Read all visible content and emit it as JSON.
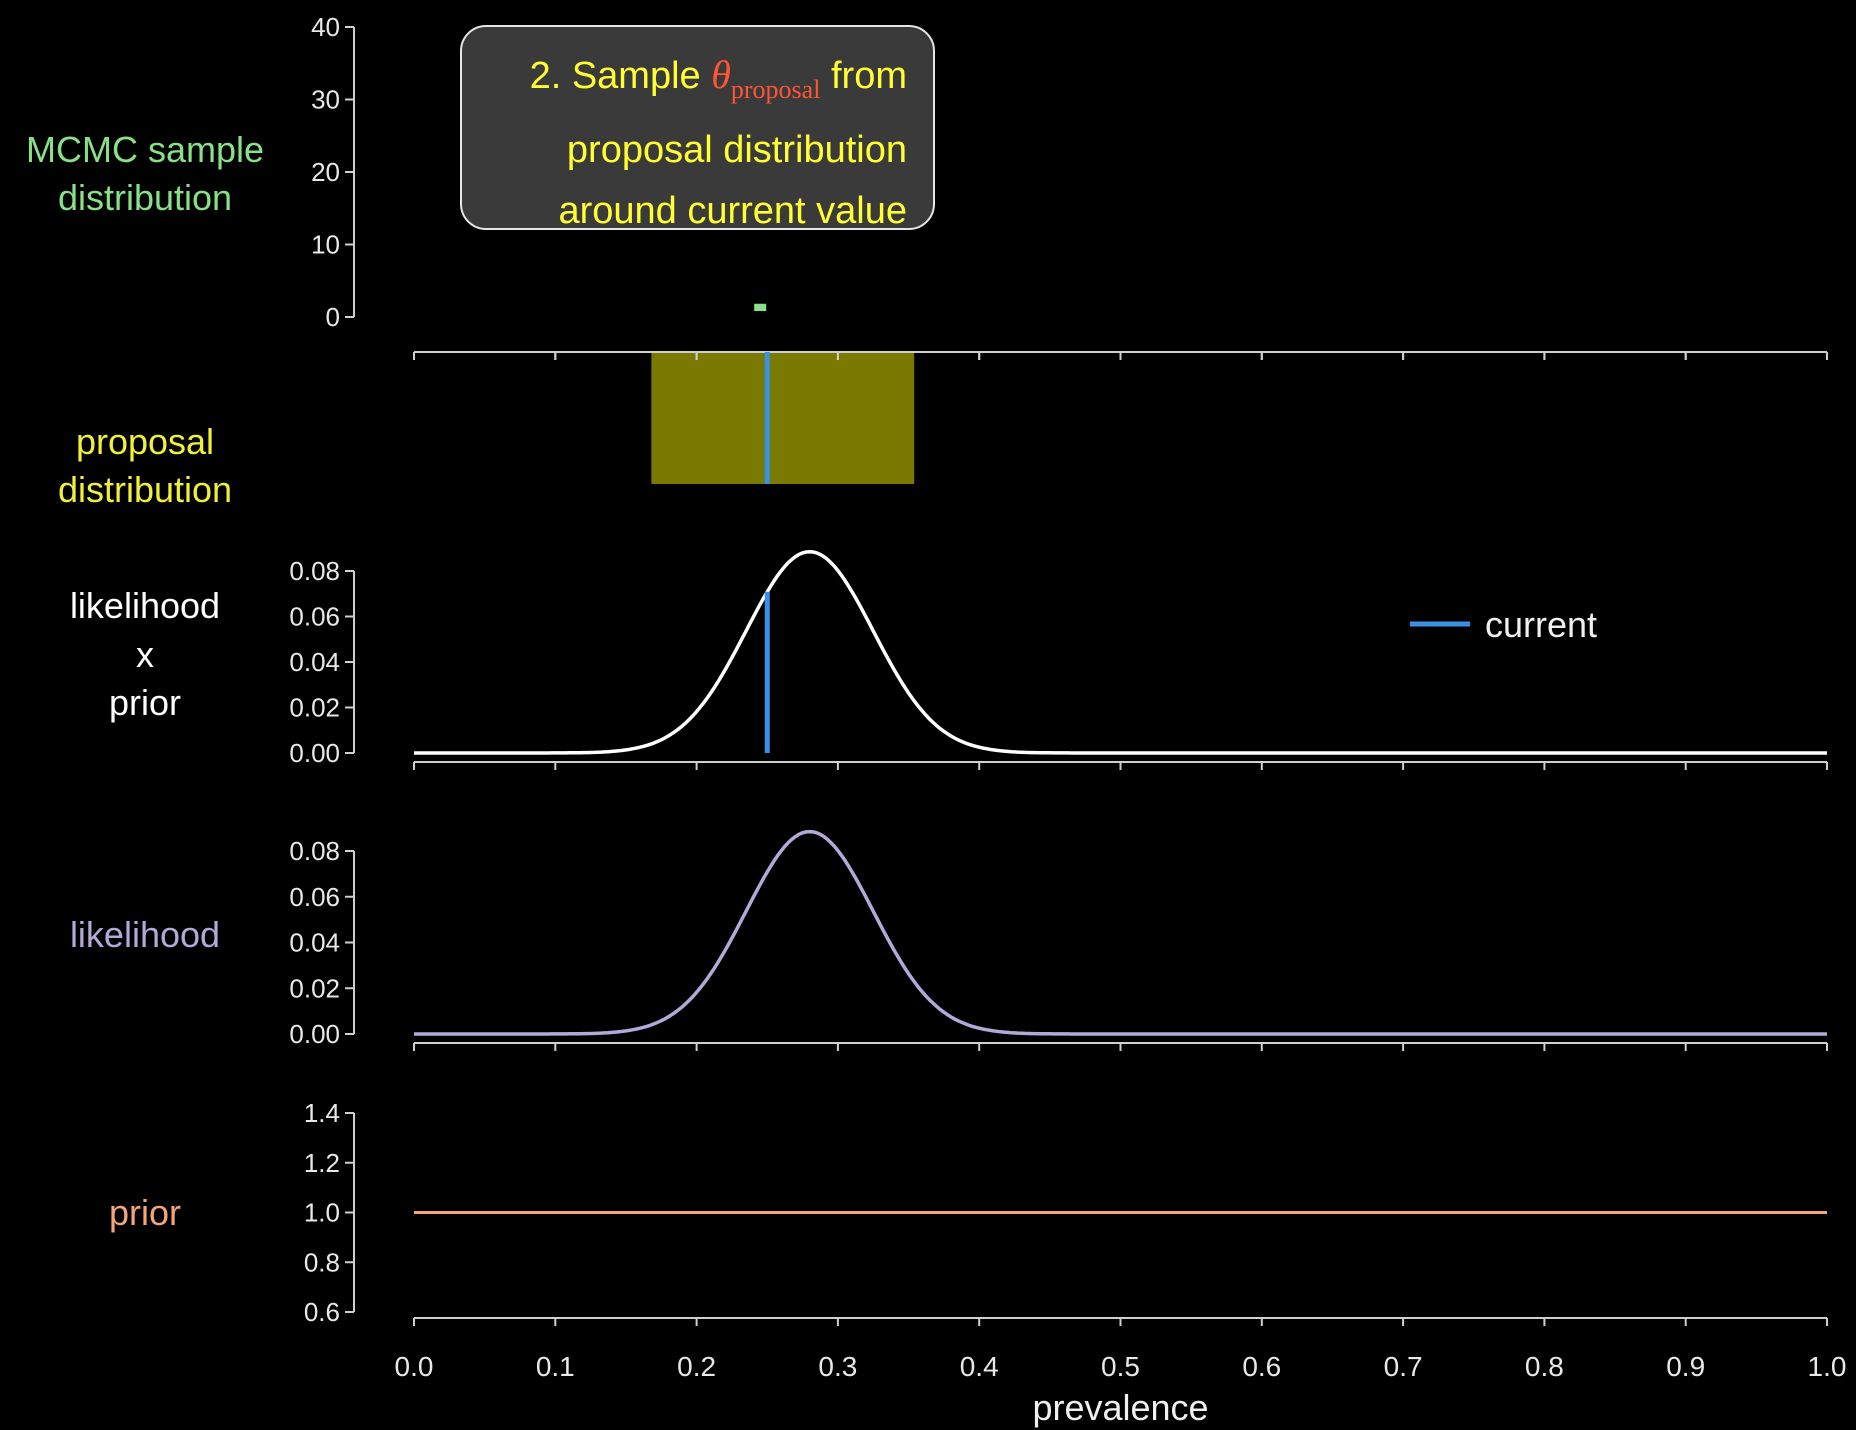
{
  "callout": {
    "line1_prefix": "2. Sample ",
    "theta": "θ",
    "subscript": "proposal",
    "line1_suffix": " from",
    "line2": "proposal distribution",
    "line3": "around current value"
  },
  "colors": {
    "mcmc": "#88e088",
    "proposal": "#f0f03a",
    "proposal_fill": "#7a7a00",
    "posterior": "#ffffff",
    "likelihood": "#b4a8d8",
    "prior": "#f4a67a",
    "current": "#3a8fe6"
  },
  "chart_data": [
    {
      "type": "bar",
      "panel": "mcmc",
      "label_lines": [
        "MCMC sample",
        "distribution"
      ],
      "ylim": [
        0,
        40
      ],
      "yticks": [
        "0",
        "10",
        "20",
        "30",
        "40"
      ],
      "xlim": [
        0,
        1
      ],
      "samples": [
        {
          "x": 0.245,
          "count": 1
        }
      ]
    },
    {
      "type": "area",
      "panel": "proposal",
      "label_lines": [
        "proposal",
        "distribution"
      ],
      "xlim": [
        0,
        1
      ],
      "proposal_range": [
        0.168,
        0.354
      ],
      "current": 0.25
    },
    {
      "type": "line",
      "panel": "posterior",
      "label_lines": [
        "likelihood",
        "x",
        "prior"
      ],
      "ylim": [
        0,
        0.08
      ],
      "yticks": [
        "0.00",
        "0.02",
        "0.04",
        "0.06",
        "0.08"
      ],
      "xlim": [
        0,
        1
      ],
      "curve": {
        "peak_x": 0.28,
        "peak_y": 0.0885,
        "sd": 0.045
      },
      "current": 0.25,
      "legend": {
        "position": "top-right",
        "entries": [
          {
            "label": "current"
          }
        ]
      }
    },
    {
      "type": "line",
      "panel": "likelihood",
      "label_lines": [
        "likelihood"
      ],
      "ylim": [
        0,
        0.08
      ],
      "yticks": [
        "0.00",
        "0.02",
        "0.04",
        "0.06",
        "0.08"
      ],
      "xlim": [
        0,
        1
      ],
      "curve": {
        "peak_x": 0.28,
        "peak_y": 0.0885,
        "sd": 0.045
      }
    },
    {
      "type": "line",
      "panel": "prior",
      "label_lines": [
        "prior"
      ],
      "ylim": [
        0.6,
        1.4
      ],
      "yticks": [
        "0.6",
        "0.8",
        "1.0",
        "1.2",
        "1.4"
      ],
      "xlim": [
        0,
        1
      ],
      "value": 1.0,
      "xticks": [
        "0.0",
        "0.1",
        "0.2",
        "0.3",
        "0.4",
        "0.5",
        "0.6",
        "0.7",
        "0.8",
        "0.9",
        "1.0"
      ],
      "xlabel": "prevalence"
    }
  ]
}
